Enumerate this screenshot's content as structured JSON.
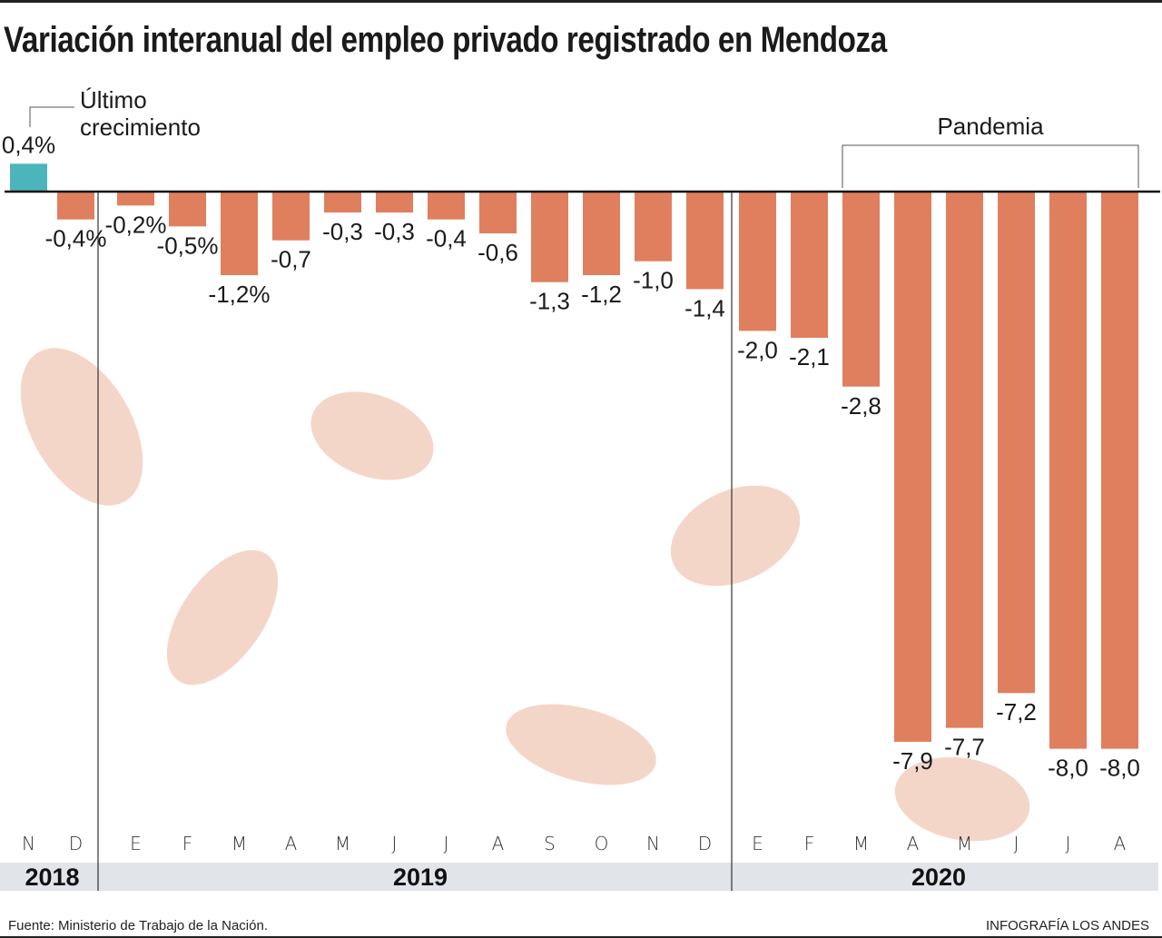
{
  "title": "Variación interanual del empleo privado registrado en Mendoza",
  "annotations": {
    "last_growth": [
      "Último",
      "crecimiento"
    ],
    "pandemic": "Pandemia"
  },
  "footer": {
    "source": "Fuente: Ministerio de Trabajo de la Nación.",
    "credit": "INFOGRAFÍA LOS ANDES"
  },
  "colors": {
    "positive": "#4bb5bb",
    "negative": "#e07f5e",
    "figures": "#f2cfc0",
    "year_band": "#e1e4e9"
  },
  "chart_data": {
    "type": "bar",
    "title": "Variación interanual del empleo privado registrado en Mendoza",
    "categories": [
      "N",
      "D",
      "E",
      "F",
      "M",
      "A",
      "M",
      "J",
      "J",
      "A",
      "S",
      "O",
      "N",
      "D",
      "E",
      "F",
      "M",
      "A",
      "M",
      "J",
      "J",
      "A"
    ],
    "years": [
      {
        "label": "2018",
        "from": 0,
        "to": 1
      },
      {
        "label": "2019",
        "from": 2,
        "to": 13
      },
      {
        "label": "2020",
        "from": 14,
        "to": 21
      }
    ],
    "values": [
      0.4,
      -0.4,
      -0.2,
      -0.5,
      -1.2,
      -0.7,
      -0.3,
      -0.3,
      -0.4,
      -0.6,
      -1.3,
      -1.2,
      -1.0,
      -1.4,
      -2.0,
      -2.1,
      -2.8,
      -7.9,
      -7.7,
      -7.2,
      -8.0,
      -8.0
    ],
    "data_labels": [
      "0,4%",
      "-0,4%",
      "-0,2%",
      "-0,5%",
      "-1,2%",
      "-0,7",
      "-0,3",
      "-0,3",
      "-0,4",
      "-0,6",
      "-1,3",
      "-1,2",
      "-1,0",
      "-1,4",
      "-2,0",
      "-2,1",
      "-2,8",
      "-7,9",
      "-7,7",
      "-7,2",
      "-8,0",
      "-8,0"
    ],
    "pandemic_range": [
      16,
      21
    ],
    "xlabel": "",
    "ylabel": "",
    "grid": false
  }
}
